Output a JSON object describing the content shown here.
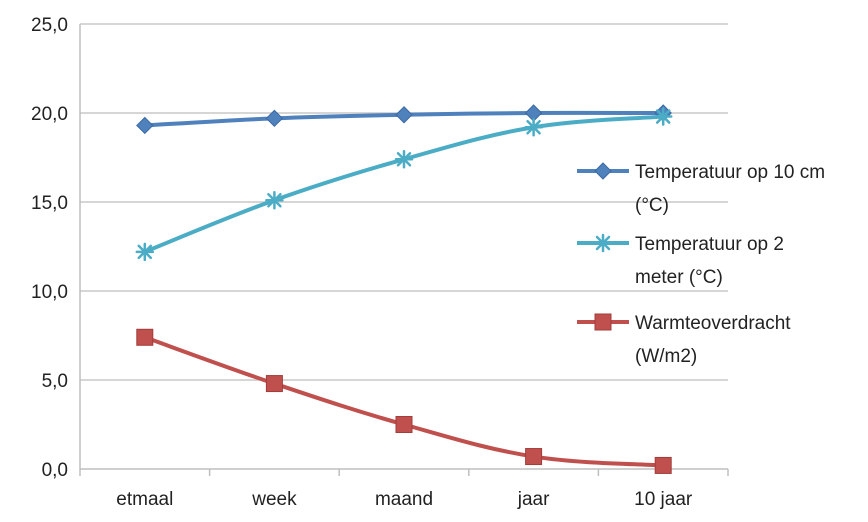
{
  "chart_data": {
    "type": "line",
    "title": "",
    "xlabel": "",
    "ylabel": "",
    "categories": [
      "etmaal",
      "week",
      "maand",
      "jaar",
      "10 jaar"
    ],
    "ylim": [
      0,
      25
    ],
    "yticks": [
      "0,0",
      "5,0",
      "10,0",
      "15,0",
      "20,0",
      "25,0"
    ],
    "grid": true,
    "legend": "right",
    "series": [
      {
        "name": "Temperatuur op 10 cm (°C)",
        "legend_lines": [
          "Temperatuur op 10 cm",
          "(°C)"
        ],
        "values": [
          19.3,
          19.7,
          19.9,
          20.0,
          20.0
        ],
        "color": "#4F81BD",
        "marker": "diamond"
      },
      {
        "name": "Temperatuur op 2 meter (°C)",
        "legend_lines": [
          "Temperatuur op 2",
          "meter (°C)"
        ],
        "values": [
          12.2,
          15.1,
          17.4,
          19.2,
          19.8
        ],
        "color": "#4BACC6",
        "marker": "star"
      },
      {
        "name": "Warmteoverdracht (W/m2)",
        "legend_lines": [
          "Warmteoverdracht",
          "(W/m2)"
        ],
        "values": [
          7.4,
          4.8,
          2.5,
          0.7,
          0.2
        ],
        "color": "#C0504D",
        "marker": "square"
      }
    ]
  }
}
